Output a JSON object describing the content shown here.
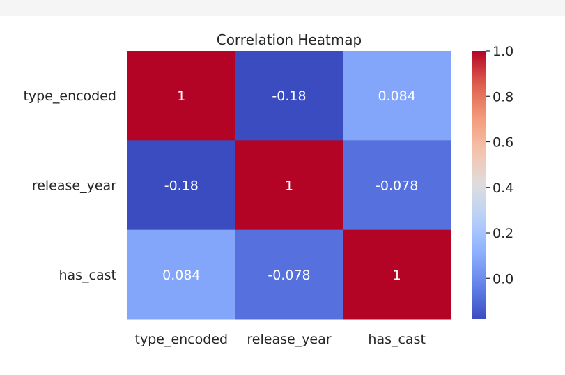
{
  "chart_data": {
    "type": "heatmap",
    "title": "Correlation Heatmap",
    "row_labels": [
      "type_encoded",
      "release_year",
      "has_cast"
    ],
    "col_labels": [
      "type_encoded",
      "release_year",
      "has_cast"
    ],
    "values": [
      [
        1,
        -0.18,
        0.084
      ],
      [
        -0.18,
        1,
        -0.078
      ],
      [
        0.084,
        -0.078,
        1
      ]
    ],
    "annotations": [
      [
        "1",
        "-0.18",
        "0.084"
      ],
      [
        "-0.18",
        "1",
        "-0.078"
      ],
      [
        "0.084",
        "-0.078",
        "1"
      ]
    ],
    "colormap": "coolwarm",
    "vmin": -0.18,
    "vmax": 1,
    "colorbar": {
      "ticks": [
        0.0,
        0.2,
        0.4,
        0.6,
        0.8,
        1.0
      ],
      "tick_labels": [
        "0.0",
        "0.2",
        "0.4",
        "0.6",
        "0.8",
        "1.0"
      ]
    },
    "colors": {
      "high": "#b40426",
      "mid": "#dddddd",
      "low": "#3b4cc0"
    }
  }
}
